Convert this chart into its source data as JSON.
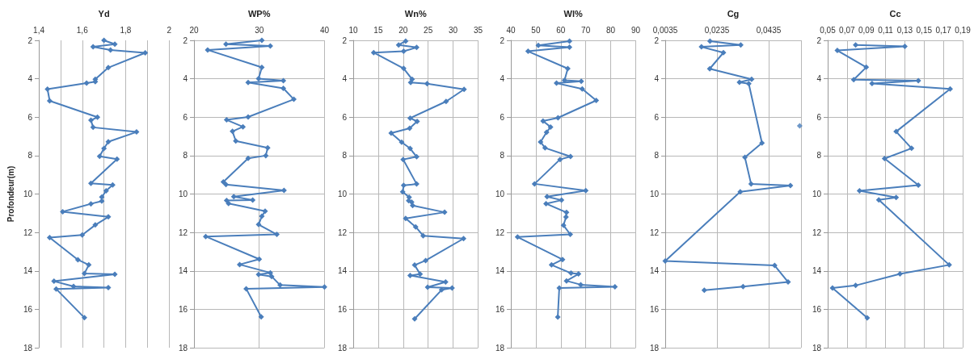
{
  "chart_data": [
    {
      "type": "line",
      "xlabel": "Yd",
      "ylabel": "Profondeur(m)",
      "marker": "diamond",
      "grid": "x",
      "xlim": [
        1.4,
        2
      ],
      "xticks": [
        {
          "value": 1.4,
          "label": "1,4"
        },
        {
          "value": 1.5,
          "label": null
        },
        {
          "value": 1.6,
          "label": "1,6"
        },
        {
          "value": 1.7,
          "label": null
        },
        {
          "value": 1.8,
          "label": "1,8"
        },
        {
          "value": 1.9,
          "label": null
        },
        2
      ],
      "ylim": [
        18,
        2
      ],
      "yticks": [
        2,
        4,
        6,
        8,
        10,
        12,
        14,
        16,
        18
      ],
      "series": [
        {
          "color": "#4a7ebb",
          "x": [
            1.7,
            1.75,
            1.65,
            1.73,
            1.89,
            1.72,
            1.66,
            1.66,
            1.62,
            1.44,
            1.45,
            1.67,
            1.64,
            1.65,
            1.85,
            1.72,
            1.7,
            1.68,
            1.76,
            1.64,
            1.74,
            1.71,
            1.69,
            1.69,
            1.64,
            1.51,
            1.72,
            1.66,
            1.6,
            1.45,
            1.58,
            1.63,
            1.61,
            1.75,
            1.47,
            1.56,
            1.72,
            1.48,
            1.61
          ],
          "values": [
            2.0,
            2.2,
            2.34,
            2.5,
            2.65,
            3.42,
            4.03,
            4.15,
            4.23,
            4.54,
            5.15,
            6.0,
            6.16,
            6.53,
            6.77,
            7.28,
            7.63,
            8.04,
            8.18,
            9.44,
            9.53,
            9.83,
            10.16,
            10.37,
            10.51,
            10.92,
            11.19,
            11.61,
            12.13,
            12.27,
            13.42,
            13.69,
            14.14,
            14.18,
            14.54,
            14.81,
            14.87,
            14.94,
            16.44
          ]
        }
      ]
    },
    {
      "type": "line",
      "xlabel": "WP%",
      "marker": "diamond",
      "grid": true,
      "xlim": [
        20,
        40
      ],
      "xticks": [
        20,
        30,
        40
      ],
      "ylim": [
        18,
        2
      ],
      "yticks": [
        2,
        4,
        6,
        8,
        10,
        12,
        14,
        16,
        18
      ],
      "series": [
        {
          "color": "#4a7ebb",
          "x": [
            30.4,
            24.9,
            31.7,
            22.1,
            30.4,
            29.9,
            33.7,
            28.3,
            33.7,
            35.3,
            28.3,
            25.0,
            27.5,
            25.9,
            26.4,
            31.3,
            31.0,
            28.3,
            24.5,
            24.9,
            33.8,
            26.1,
            29.0,
            25.0,
            25.3,
            30.9,
            30.4,
            29.9,
            32.7,
            21.8,
            30.0,
            27.0,
            31.7,
            29.9,
            31.9,
            33.2,
            40.0,
            28.0,
            30.3
          ],
          "values": [
            2.0,
            2.2,
            2.29,
            2.5,
            3.41,
            3.99,
            4.1,
            4.19,
            4.5,
            5.07,
            5.99,
            6.14,
            6.5,
            6.74,
            7.24,
            7.6,
            8.0,
            8.14,
            9.37,
            9.51,
            9.81,
            10.14,
            10.31,
            10.34,
            10.49,
            10.89,
            11.16,
            11.59,
            12.1,
            12.21,
            13.39,
            13.67,
            14.1,
            14.19,
            14.29,
            14.74,
            14.84,
            14.93,
            16.39
          ]
        }
      ]
    },
    {
      "type": "line",
      "xlabel": "Wn%",
      "marker": "diamond",
      "grid": true,
      "xlim": [
        10,
        35
      ],
      "xticks": [
        10,
        15,
        20,
        25,
        30,
        35
      ],
      "ylim": [
        18,
        2
      ],
      "yticks": [
        2,
        4,
        6,
        8,
        10,
        12,
        14,
        16,
        18
      ],
      "series": [
        {
          "color": "#4a7ebb",
          "x": [
            20.5,
            19.1,
            22.7,
            20.1,
            14.1,
            20.1,
            21.8,
            21.5,
            24.8,
            32.2,
            28.6,
            21.4,
            22.8,
            21.3,
            17.6,
            19.7,
            21.4,
            22.7,
            20.0,
            22.7,
            20.1,
            19.9,
            21.2,
            21.1,
            21.7,
            21.9,
            28.3,
            20.5,
            22.5,
            24.0,
            32.1,
            24.5,
            22.3,
            23.4,
            21.4,
            28.5,
            24.9,
            29.8,
            27.7,
            22.3
          ],
          "values": [
            2.04,
            2.24,
            2.37,
            2.57,
            2.64,
            3.46,
            4.03,
            4.19,
            4.26,
            4.55,
            5.18,
            6.05,
            6.22,
            6.58,
            6.83,
            7.3,
            7.63,
            8.06,
            8.2,
            9.48,
            9.55,
            9.88,
            10.17,
            10.35,
            10.42,
            10.6,
            10.95,
            11.27,
            11.71,
            12.17,
            12.32,
            13.46,
            13.7,
            14.17,
            14.24,
            14.58,
            14.85,
            14.89,
            14.99,
            16.5
          ]
        }
      ]
    },
    {
      "type": "line",
      "xlabel": "Wl%",
      "marker": "diamond",
      "grid": true,
      "xlim": [
        40,
        90
      ],
      "xticks": [
        40,
        50,
        60,
        70,
        80,
        90
      ],
      "ylim": [
        18,
        2
      ],
      "yticks": [
        2,
        4,
        6,
        8,
        10,
        12,
        14,
        16,
        18
      ],
      "series": [
        {
          "color": "#4a7ebb",
          "x": [
            63.5,
            51.0,
            63.5,
            46.9,
            62.8,
            61.5,
            68.2,
            58.3,
            68.6,
            74.2,
            58.9,
            52.9,
            55.9,
            54.3,
            51.9,
            53.7,
            63.9,
            59.7,
            49.5,
            70.0,
            54.5,
            60.3,
            54.1,
            62.3,
            62.1,
            61.1,
            63.8,
            42.7,
            60.7,
            56.3,
            64.1,
            67.1,
            62.3,
            68.0,
            81.7,
            59.4,
            58.8
          ],
          "values": [
            2.04,
            2.26,
            2.36,
            2.57,
            3.47,
            4.08,
            4.13,
            4.23,
            4.53,
            5.13,
            6.03,
            6.2,
            6.51,
            6.79,
            7.29,
            7.6,
            8.05,
            8.2,
            9.47,
            9.82,
            10.14,
            10.32,
            10.5,
            10.96,
            11.2,
            11.63,
            12.1,
            12.24,
            13.41,
            13.69,
            14.12,
            14.16,
            14.52,
            14.72,
            14.83,
            14.89,
            16.4
          ]
        }
      ]
    },
    {
      "type": "line",
      "xlabel": "Cg",
      "marker": "diamond",
      "grid": true,
      "xlim": [
        0.0035,
        0.056
      ],
      "xticks": [
        {
          "value": 0.0035,
          "label": "0,0035"
        },
        {
          "value": 0.0235,
          "label": "0,0235"
        },
        {
          "value": 0.0435,
          "label": "0,0435"
        }
      ],
      "ylim": [
        18,
        2
      ],
      "yticks": [
        2,
        4,
        6,
        8,
        10,
        12,
        14,
        16,
        18
      ],
      "series": [
        {
          "color": "#4a7ebb",
          "x": [
            0.0208,
            0.0327,
            0.0175,
            0.026,
            0.0207,
            0.0369,
            0.0322,
            0.0358,
            0.0409,
            0.0343,
            0.0367,
            0.0519,
            0.0325,
            0.0035,
            0.0458,
            0.051,
            0.0336,
            0.0186
          ],
          "values": [
            2.04,
            2.24,
            2.34,
            2.64,
            3.48,
            4.03,
            4.18,
            4.26,
            7.34,
            8.09,
            9.48,
            9.56,
            9.88,
            13.49,
            13.72,
            14.58,
            14.82,
            15.01
          ]
        },
        {
          "type": "scatter",
          "color": "#4a7ebb",
          "x": [
            0.0555
          ],
          "values": [
            6.45
          ]
        }
      ]
    },
    {
      "type": "line",
      "xlabel": "Cc",
      "marker": "diamond",
      "grid": true,
      "xlim": [
        0.05,
        0.19
      ],
      "xticks": [
        {
          "value": 0.05,
          "label": "0,05"
        },
        {
          "value": 0.07,
          "label": "0,07"
        },
        {
          "value": 0.09,
          "label": "0,09"
        },
        {
          "value": 0.11,
          "label": "0,11"
        },
        {
          "value": 0.13,
          "label": "0,13"
        },
        {
          "value": 0.15,
          "label": "0,15"
        },
        {
          "value": 0.17,
          "label": "0,17"
        },
        {
          "value": 0.19,
          "label": "0,19"
        }
      ],
      "ylim": [
        18,
        2
      ],
      "yticks": [
        2,
        4,
        6,
        8,
        10,
        12,
        14,
        16,
        18
      ],
      "series": [
        {
          "color": "#4a7ebb",
          "x": [
            0.079,
            0.13,
            0.06,
            0.09,
            0.077,
            0.144,
            0.096,
            0.177,
            0.121,
            0.137,
            0.109,
            0.144,
            0.083,
            0.121,
            0.103,
            0.176,
            0.125,
            0.079,
            0.055,
            0.091
          ],
          "values": [
            2.24,
            2.31,
            2.53,
            3.4,
            4.05,
            4.1,
            4.25,
            4.53,
            6.75,
            7.62,
            8.15,
            9.54,
            9.83,
            10.18,
            10.3,
            13.69,
            14.16,
            14.76,
            14.89,
            16.45
          ]
        }
      ]
    }
  ]
}
